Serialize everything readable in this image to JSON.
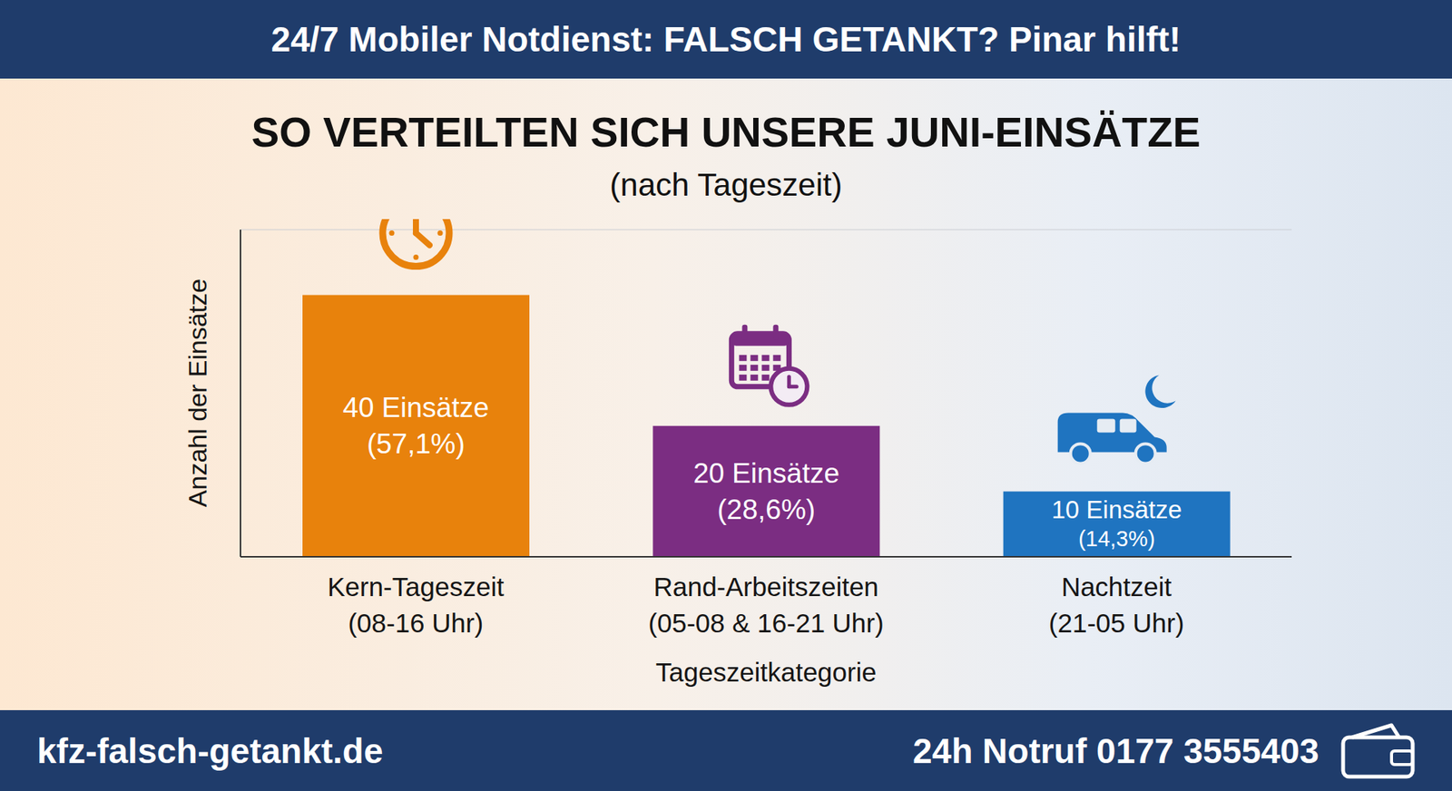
{
  "header": "24/7 Mobiler Notdienst: FALSCH GETANKT? Pinar hilft!",
  "footer": {
    "left": "kfz-falsch-getankt.de",
    "right": "24h Notruf 0177 3555403"
  },
  "chart_data": {
    "type": "bar",
    "title": "SO VERTEILTEN SICH UNSERE JUNI-EINSÄTZE",
    "subtitle": "(nach Tageszeit)",
    "x_label": "Tageszeitkategorie",
    "y_label": "Anzahl der Einsätze",
    "categories": [
      "Kern-Tageszeit (08-16 Uhr)",
      "Rand-Arbeitszeiten (05-08 & 16-21 Uhr)",
      "Nachtzeit (21-05 Uhr)"
    ],
    "values": [
      40,
      20,
      10
    ],
    "value_labels": [
      "40 Einsätze (57,1%)",
      "20 Einsätze (28,6%)",
      "10 Einsätze (14,3%)"
    ],
    "colors": [
      "#e8820c",
      "#7b2d82",
      "#1f74c0"
    ],
    "ylim": [
      0,
      50
    ],
    "yticks": [
      0,
      20,
      40
    ],
    "grid": true,
    "data_labels": true,
    "tick_labels": "x"
  }
}
